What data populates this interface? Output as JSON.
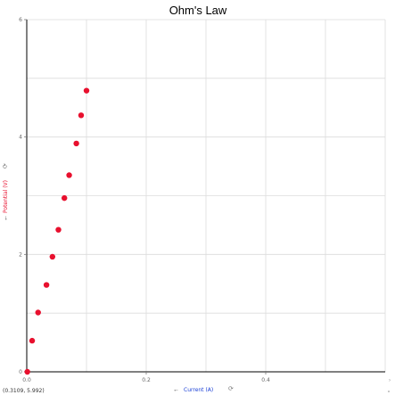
{
  "chart_data": {
    "type": "scatter",
    "title": "Ohm's Law",
    "xlabel": "Current (A)",
    "ylabel": "Potential (V)",
    "xlim": [
      0,
      0.6
    ],
    "ylim": [
      0,
      6
    ],
    "xticks": [
      0.0,
      0.2,
      0.4
    ],
    "xtick_labels": [
      "0.0",
      "0.2",
      "0.4"
    ],
    "yticks": [
      0,
      2,
      4,
      6
    ],
    "ytick_labels": [
      "0",
      "2",
      "4",
      "6"
    ],
    "grid": true,
    "series": [
      {
        "color": "#e8102e",
        "points": [
          {
            "x": 0.001,
            "y": 0.0
          },
          {
            "x": 0.009,
            "y": 0.53
          },
          {
            "x": 0.019,
            "y": 1.01
          },
          {
            "x": 0.033,
            "y": 1.48
          },
          {
            "x": 0.043,
            "y": 1.96
          },
          {
            "x": 0.053,
            "y": 2.42
          },
          {
            "x": 0.063,
            "y": 2.96
          },
          {
            "x": 0.071,
            "y": 3.35
          },
          {
            "x": 0.083,
            "y": 3.89
          },
          {
            "x": 0.091,
            "y": 4.37
          },
          {
            "x": 0.1,
            "y": 4.79
          }
        ]
      }
    ]
  },
  "colors": {
    "axis": "#000000",
    "grid": "#dcdcdc",
    "point": "#e8102e",
    "ylabel": "#e8102e",
    "xlabel": "#1a3fd6"
  },
  "icons": {
    "x_arrow": "left-arrow-icon",
    "x_refresh": "refresh-icon",
    "y_arrow": "down-arrow-icon",
    "y_refresh": "refresh-icon"
  },
  "readout": {
    "coordinates": "(0.3109, 5.992)"
  }
}
